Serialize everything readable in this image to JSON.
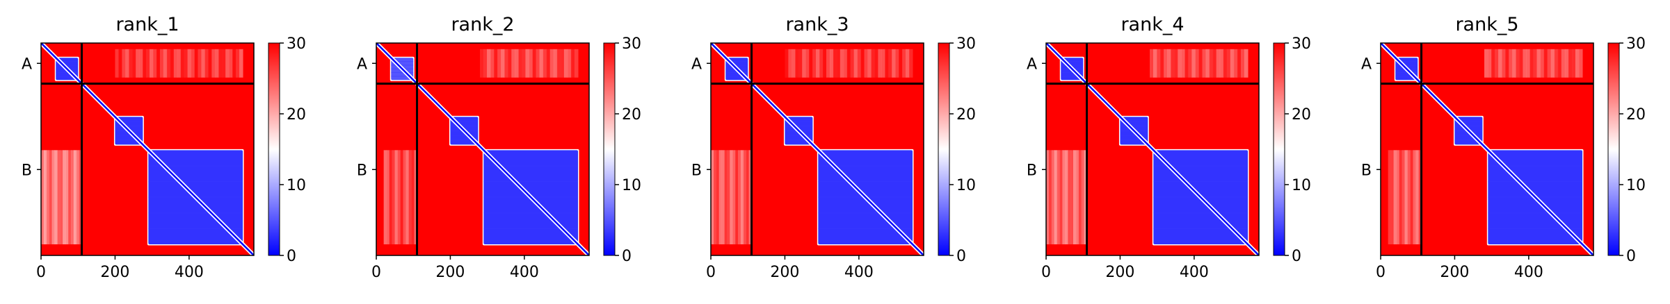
{
  "colors": {
    "high": "#ff0000",
    "mid": "#ffffff",
    "low": "#0000ff",
    "chain_line": "#000000"
  },
  "chart_data": [
    {
      "type": "heatmap",
      "title": "rank_1",
      "xticks": [
        0,
        200,
        400
      ],
      "xlim": [
        0,
        575
      ],
      "chains": [
        {
          "name": "A",
          "start": 0,
          "end": 110
        },
        {
          "name": "B",
          "start": 110,
          "end": 575
        }
      ],
      "chain_boundary": 110,
      "colorbar": {
        "min": 0,
        "max": 30,
        "ticks": [
          0,
          10,
          20,
          30
        ]
      },
      "domains": [
        {
          "start": 40,
          "end": 100,
          "value": 3
        },
        {
          "start": 200,
          "end": 275,
          "value": 3
        },
        {
          "start": 290,
          "end": 545,
          "value": 3
        }
      ],
      "interface_blocks": [
        {
          "rows": [
            0,
            110
          ],
          "cols": [
            200,
            545
          ],
          "value": 26
        },
        {
          "rows": [
            290,
            545
          ],
          "cols": [
            0,
            110
          ],
          "value": 22
        }
      ]
    },
    {
      "type": "heatmap",
      "title": "rank_2",
      "xticks": [
        0,
        200,
        400
      ],
      "xlim": [
        0,
        575
      ],
      "chains": [
        {
          "name": "A",
          "start": 0,
          "end": 110
        },
        {
          "name": "B",
          "start": 110,
          "end": 575
        }
      ],
      "chain_boundary": 110,
      "colorbar": {
        "min": 0,
        "max": 30,
        "ticks": [
          0,
          10,
          20,
          30
        ]
      },
      "domains": [
        {
          "start": 40,
          "end": 100,
          "value": 5
        },
        {
          "start": 200,
          "end": 275,
          "value": 3
        },
        {
          "start": 290,
          "end": 545,
          "value": 3
        }
      ],
      "interface_blocks": [
        {
          "rows": [
            0,
            110
          ],
          "cols": [
            280,
            545
          ],
          "value": 25
        },
        {
          "rows": [
            290,
            545
          ],
          "cols": [
            20,
            110
          ],
          "value": 25
        }
      ]
    },
    {
      "type": "heatmap",
      "title": "rank_3",
      "xticks": [
        0,
        200,
        400
      ],
      "xlim": [
        0,
        575
      ],
      "chains": [
        {
          "name": "A",
          "start": 0,
          "end": 110
        },
        {
          "name": "B",
          "start": 110,
          "end": 575
        }
      ],
      "chain_boundary": 110,
      "colorbar": {
        "min": 0,
        "max": 30,
        "ticks": [
          0,
          10,
          20,
          30
        ]
      },
      "domains": [
        {
          "start": 40,
          "end": 100,
          "value": 3
        },
        {
          "start": 200,
          "end": 275,
          "value": 3
        },
        {
          "start": 290,
          "end": 545,
          "value": 3
        }
      ],
      "interface_blocks": [
        {
          "rows": [
            0,
            110
          ],
          "cols": [
            200,
            545
          ],
          "value": 26
        },
        {
          "rows": [
            290,
            545
          ],
          "cols": [
            0,
            110
          ],
          "value": 24
        }
      ]
    },
    {
      "type": "heatmap",
      "title": "rank_4",
      "xticks": [
        0,
        200,
        400
      ],
      "xlim": [
        0,
        575
      ],
      "chains": [
        {
          "name": "A",
          "start": 0,
          "end": 110
        },
        {
          "name": "B",
          "start": 110,
          "end": 575
        }
      ],
      "chain_boundary": 110,
      "colorbar": {
        "min": 0,
        "max": 30,
        "ticks": [
          0,
          10,
          20,
          30
        ]
      },
      "domains": [
        {
          "start": 40,
          "end": 100,
          "value": 3
        },
        {
          "start": 200,
          "end": 275,
          "value": 3
        },
        {
          "start": 290,
          "end": 545,
          "value": 3
        }
      ],
      "interface_blocks": [
        {
          "rows": [
            0,
            110
          ],
          "cols": [
            280,
            545
          ],
          "value": 25
        },
        {
          "rows": [
            290,
            545
          ],
          "cols": [
            0,
            110
          ],
          "value": 23
        }
      ]
    },
    {
      "type": "heatmap",
      "title": "rank_5",
      "xticks": [
        0,
        200,
        400
      ],
      "xlim": [
        0,
        575
      ],
      "chains": [
        {
          "name": "A",
          "start": 0,
          "end": 110
        },
        {
          "name": "B",
          "start": 110,
          "end": 575
        }
      ],
      "chain_boundary": 110,
      "colorbar": {
        "min": 0,
        "max": 30,
        "ticks": [
          0,
          10,
          20,
          30
        ]
      },
      "domains": [
        {
          "start": 40,
          "end": 100,
          "value": 3
        },
        {
          "start": 200,
          "end": 275,
          "value": 3
        },
        {
          "start": 290,
          "end": 545,
          "value": 3
        }
      ],
      "interface_blocks": [
        {
          "rows": [
            0,
            110
          ],
          "cols": [
            280,
            545
          ],
          "value": 25
        },
        {
          "rows": [
            290,
            545
          ],
          "cols": [
            20,
            110
          ],
          "value": 24
        }
      ]
    }
  ]
}
